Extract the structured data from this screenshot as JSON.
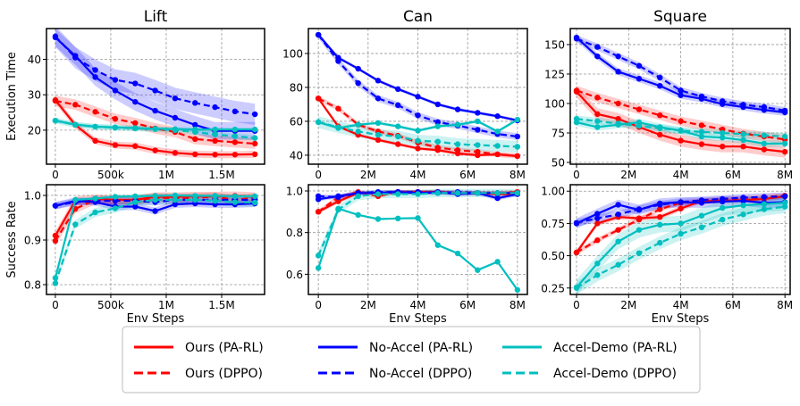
{
  "legend": [
    {
      "label": "Ours (PA-RL)",
      "color": "#ff0000",
      "dashed": false
    },
    {
      "label": "Ours (DPPO)",
      "color": "#ff0000",
      "dashed": true
    },
    {
      "label": "No-Accel (PA-RL)",
      "color": "#0000ff",
      "dashed": false
    },
    {
      "label": "No-Accel (DPPO)",
      "color": "#0000ff",
      "dashed": true
    },
    {
      "label": "Accel-Demo (PA-RL)",
      "color": "#00bfbf",
      "dashed": false
    },
    {
      "label": "Accel-Demo (DPPO)",
      "color": "#00bfbf",
      "dashed": true
    }
  ],
  "chart_data": [
    {
      "type": "line",
      "title": "Lift",
      "ylabel": "Execution Time",
      "xlabel": "",
      "xlim": [
        -0.08,
        1.887
      ],
      "ylim": [
        10.4,
        48.7
      ],
      "xticks": [
        0,
        0.5,
        1,
        1.5
      ],
      "xtick_labels": [
        "0",
        "500k",
        "1M",
        "1.5M"
      ],
      "yticks": [
        20,
        30,
        40
      ],
      "ytick_labels": [
        "20",
        "30",
        "40"
      ],
      "x": [
        0,
        0.18,
        0.36,
        0.54,
        0.72,
        0.9,
        1.08,
        1.26,
        1.44,
        1.62,
        1.8
      ],
      "series": [
        {
          "name": "Ours (PA-RL)",
          "band": 1.0,
          "values": [
            28.5,
            21.5,
            17,
            15.8,
            15.5,
            14.3,
            13.6,
            13.2,
            13.1,
            13.1,
            13.2
          ]
        },
        {
          "name": "Ours (DPPO)",
          "band": 1.5,
          "values": [
            28.3,
            27.2,
            25.2,
            23.2,
            22,
            20.5,
            19.5,
            17.5,
            17,
            16.6,
            16.2
          ]
        },
        {
          "name": "No-Accel (PA-RL)",
          "band": 2.5,
          "values": [
            46.2,
            41,
            35,
            31.2,
            28,
            25.5,
            23.5,
            21.5,
            19.8,
            19.8,
            19.8
          ]
        },
        {
          "name": "No-Accel (DPPO)",
          "band": 3.0,
          "values": [
            46.5,
            40.5,
            37,
            34.2,
            33.2,
            31.2,
            29,
            27.7,
            26.5,
            25.3,
            24.5
          ]
        },
        {
          "name": "Accel-Demo (PA-RL)",
          "band": 0.6,
          "values": [
            22.7,
            21.6,
            21,
            20.8,
            20.6,
            20.4,
            20.3,
            20.2,
            20.2,
            20.2,
            20.2
          ]
        },
        {
          "name": "Accel-Demo (DPPO)",
          "band": 0.8,
          "values": [
            22.7,
            21.5,
            21.0,
            20.7,
            20.5,
            20.3,
            20.0,
            19.5,
            18.8,
            18.3,
            17.8
          ]
        }
      ]
    },
    {
      "type": "line",
      "title": "Can",
      "ylabel": "",
      "xlabel": "",
      "xlim": [
        -0.4,
        8.4
      ],
      "ylim": [
        34.7,
        114.7
      ],
      "xticks": [
        0,
        2,
        4,
        6,
        8
      ],
      "xtick_labels": [
        "0",
        "2M",
        "4M",
        "6M",
        "8M"
      ],
      "yticks": [
        40,
        60,
        80,
        100
      ],
      "ytick_labels": [
        "40",
        "60",
        "80",
        "100"
      ],
      "x": [
        0,
        0.8,
        1.6,
        2.4,
        3.2,
        4,
        4.8,
        5.6,
        6.4,
        7.2,
        8
      ],
      "series": [
        {
          "name": "Ours (PA-RL)",
          "band": 1.0,
          "values": [
            73.5,
            57,
            52,
            49,
            46.5,
            44,
            43,
            41,
            40,
            40.5,
            39.5
          ]
        },
        {
          "name": "Ours (DPPO)",
          "band": 1.5,
          "values": [
            73.5,
            67.5,
            58,
            54,
            51.5,
            47.5,
            44.5,
            43,
            42,
            40.5,
            39.5
          ]
        },
        {
          "name": "No-Accel (PA-RL)",
          "band": 1.0,
          "values": [
            111,
            97.5,
            91,
            84,
            79,
            74.5,
            70,
            67,
            65,
            63,
            60.5
          ]
        },
        {
          "name": "No-Accel (DPPO)",
          "band": 2.0,
          "values": [
            111,
            95.5,
            82.5,
            73.5,
            69.5,
            63.5,
            59.5,
            57.5,
            55,
            52.5,
            51
          ]
        },
        {
          "name": "Accel-Demo (PA-RL)",
          "band": 1.0,
          "values": [
            59.5,
            56,
            58,
            59,
            57,
            54.5,
            57,
            58,
            60,
            54,
            61
          ]
        },
        {
          "name": "Accel-Demo (DPPO)",
          "band": 3.5,
          "values": [
            59.5,
            56.5,
            54,
            52,
            51,
            48.5,
            48,
            46.5,
            46,
            45.5,
            45
          ]
        }
      ]
    },
    {
      "type": "line",
      "title": "Square",
      "ylabel": "",
      "xlabel": "",
      "xlim": [
        -0.24,
        8.2
      ],
      "ylim": [
        48.5,
        163.6
      ],
      "xticks": [
        0,
        2,
        4,
        6,
        8
      ],
      "xtick_labels": [
        "0",
        "2M",
        "4M",
        "6M",
        "8M"
      ],
      "yticks": [
        50,
        75,
        100,
        125,
        150
      ],
      "ytick_labels": [
        "50",
        "75",
        "100",
        "125",
        "150"
      ],
      "x": [
        0,
        0.8,
        1.6,
        2.4,
        3.2,
        4,
        4.8,
        5.6,
        6.4,
        7.2,
        8
      ],
      "series": [
        {
          "name": "Ours (PA-RL)",
          "band": 5.0,
          "values": [
            110,
            91,
            87,
            80,
            73.5,
            68.5,
            65.5,
            63.5,
            63.5,
            61,
            59
          ]
        },
        {
          "name": "Ours (DPPO)",
          "band": 4.0,
          "values": [
            111,
            105,
            100,
            95,
            90,
            85,
            81.5,
            78,
            74.5,
            72,
            69.5
          ]
        },
        {
          "name": "No-Accel (PA-RL)",
          "band": 3.0,
          "values": [
            156,
            140,
            127,
            121,
            115,
            107,
            104,
            99.5,
            97,
            94.5,
            92.5
          ]
        },
        {
          "name": "No-Accel (DPPO)",
          "band": 3.0,
          "values": [
            155,
            148,
            140,
            132,
            122,
            111,
            106,
            102,
            99,
            97,
            94
          ]
        },
        {
          "name": "Accel-Demo (PA-RL)",
          "band": 3.0,
          "values": [
            84,
            80,
            82,
            84,
            80,
            77,
            72,
            71,
            69,
            66,
            66
          ]
        },
        {
          "name": "Accel-Demo (DPPO)",
          "band": 3.0,
          "values": [
            87,
            85,
            83,
            81,
            79,
            77,
            76,
            75,
            74,
            73,
            72
          ]
        }
      ]
    },
    {
      "type": "line",
      "title": "",
      "ylabel": "Success Rate",
      "xlabel": "Env Steps",
      "xlim": [
        -0.08,
        1.887
      ],
      "ylim": [
        0.778,
        1.024
      ],
      "xticks": [
        0,
        0.5,
        1,
        1.5
      ],
      "xtick_labels": [
        "0",
        "500k",
        "1M",
        "1.5M"
      ],
      "yticks": [
        0.8,
        0.9,
        1.0
      ],
      "ytick_labels": [
        "0.8",
        "0.9",
        "1.0"
      ],
      "x": [
        0,
        0.18,
        0.36,
        0.54,
        0.72,
        0.9,
        1.08,
        1.26,
        1.44,
        1.62,
        1.8
      ],
      "series": [
        {
          "name": "Ours (PA-RL)",
          "band": 0.01,
          "values": [
            0.91,
            0.988,
            0.992,
            0.99,
            0.99,
            0.997,
            0.997,
            0.998,
            0.998,
            0.999,
            0.997
          ]
        },
        {
          "name": "Ours (DPPO)",
          "band": 0.01,
          "values": [
            0.898,
            0.97,
            0.99,
            0.988,
            0.988,
            0.995,
            0.993,
            0.995,
            0.997,
            0.99,
            0.995
          ]
        },
        {
          "name": "No-Accel (PA-RL)",
          "band": 0.008,
          "values": [
            0.977,
            0.988,
            0.985,
            0.975,
            0.975,
            0.965,
            0.98,
            0.982,
            0.98,
            0.98,
            0.982
          ]
        },
        {
          "name": "No-Accel (DPPO)",
          "band": 0.008,
          "values": [
            0.977,
            0.985,
            0.988,
            0.988,
            0.988,
            0.985,
            0.99,
            0.99,
            0.99,
            0.99,
            0.99
          ]
        },
        {
          "name": "Accel-Demo (PA-RL)",
          "band": 0.005,
          "values": [
            0.815,
            0.99,
            0.993,
            0.997,
            0.998,
            0.999,
            1.0,
            0.999,
            0.999,
            0.998,
            0.998
          ]
        },
        {
          "name": "Accel-Demo (DPPO)",
          "band": 0.01,
          "values": [
            0.803,
            0.935,
            0.962,
            0.971,
            0.985,
            0.99,
            0.99,
            0.99,
            0.988,
            0.985,
            0.984
          ]
        }
      ]
    },
    {
      "type": "line",
      "title": "",
      "ylabel": "",
      "xlabel": "Env Steps",
      "xlim": [
        -0.4,
        8.4
      ],
      "ylim": [
        0.503,
        1.03
      ],
      "xticks": [
        0,
        2,
        4,
        6,
        8
      ],
      "xtick_labels": [
        "0",
        "2M",
        "4M",
        "6M",
        "8M"
      ],
      "yticks": [
        0.6,
        0.8,
        1.0
      ],
      "ytick_labels": [
        "0.6",
        "0.8",
        "1.0"
      ],
      "x": [
        0,
        0.8,
        1.6,
        2.4,
        3.2,
        4,
        4.8,
        5.6,
        6.4,
        7.2,
        8
      ],
      "series": [
        {
          "name": "Ours (PA-RL)",
          "band": 0.01,
          "values": [
            0.9,
            0.95,
            0.99,
            0.99,
            0.995,
            0.995,
            0.995,
            0.99,
            0.99,
            0.985,
            0.985
          ]
        },
        {
          "name": "Ours (DPPO)",
          "band": 0.01,
          "values": [
            0.9,
            0.97,
            0.995,
            0.975,
            0.995,
            0.995,
            0.995,
            0.99,
            0.99,
            0.99,
            0.995
          ]
        },
        {
          "name": "No-Accel (PA-RL)",
          "band": 0.01,
          "values": [
            0.96,
            0.975,
            0.99,
            0.99,
            0.995,
            0.99,
            0.995,
            0.985,
            0.99,
            0.965,
            0.985
          ]
        },
        {
          "name": "No-Accel (DPPO)",
          "band": 0.01,
          "values": [
            0.975,
            0.97,
            0.99,
            0.995,
            0.995,
            0.995,
            0.99,
            0.995,
            0.99,
            0.99,
            0.99
          ]
        },
        {
          "name": "Accel-Demo (PA-RL)",
          "band": 0.0,
          "values": [
            0.63,
            0.915,
            0.885,
            0.865,
            0.868,
            0.87,
            0.74,
            0.7,
            0.62,
            0.66,
            0.525
          ]
        },
        {
          "name": "Accel-Demo (DPPO)",
          "band": 0.02,
          "values": [
            0.69,
            0.91,
            0.975,
            0.985,
            0.985,
            0.985,
            0.99,
            0.99,
            0.99,
            0.99,
            0.99
          ]
        }
      ]
    },
    {
      "type": "line",
      "title": "",
      "ylabel": "",
      "xlabel": "Env Steps",
      "xlim": [
        -0.24,
        8.2
      ],
      "ylim": [
        0.2,
        1.05
      ],
      "xticks": [
        0,
        2,
        4,
        6,
        8
      ],
      "xtick_labels": [
        "0",
        "2M",
        "4M",
        "6M",
        "8M"
      ],
      "yticks": [
        0.25,
        0.5,
        0.75,
        1.0
      ],
      "ytick_labels": [
        "0.25",
        "0.50",
        "0.75",
        "1.00"
      ],
      "x": [
        0,
        0.8,
        1.6,
        2.4,
        3.2,
        4,
        4.8,
        5.6,
        6.4,
        7.2,
        8
      ],
      "series": [
        {
          "name": "Ours (PA-RL)",
          "band": 0.02,
          "values": [
            0.525,
            0.75,
            0.8,
            0.79,
            0.8,
            0.865,
            0.925,
            0.925,
            0.93,
            0.94,
            0.96
          ]
        },
        {
          "name": "Ours (DPPO)",
          "band": 0.02,
          "values": [
            0.525,
            0.62,
            0.7,
            0.78,
            0.86,
            0.91,
            0.925,
            0.935,
            0.945,
            0.955,
            0.965
          ]
        },
        {
          "name": "No-Accel (PA-RL)",
          "band": 0.04,
          "values": [
            0.75,
            0.825,
            0.895,
            0.855,
            0.905,
            0.915,
            0.91,
            0.92,
            0.925,
            0.91,
            0.915
          ]
        },
        {
          "name": "No-Accel (DPPO)",
          "band": 0.03,
          "values": [
            0.755,
            0.79,
            0.82,
            0.86,
            0.895,
            0.915,
            0.93,
            0.94,
            0.95,
            0.955,
            0.96
          ]
        },
        {
          "name": "Accel-Demo (PA-RL)",
          "band": 0.06,
          "values": [
            0.255,
            0.44,
            0.61,
            0.7,
            0.74,
            0.75,
            0.81,
            0.87,
            0.89,
            0.9,
            0.91
          ]
        },
        {
          "name": "Accel-Demo (DPPO)",
          "band": 0.05,
          "values": [
            0.25,
            0.35,
            0.43,
            0.52,
            0.6,
            0.67,
            0.72,
            0.78,
            0.82,
            0.86,
            0.88
          ]
        }
      ]
    }
  ]
}
